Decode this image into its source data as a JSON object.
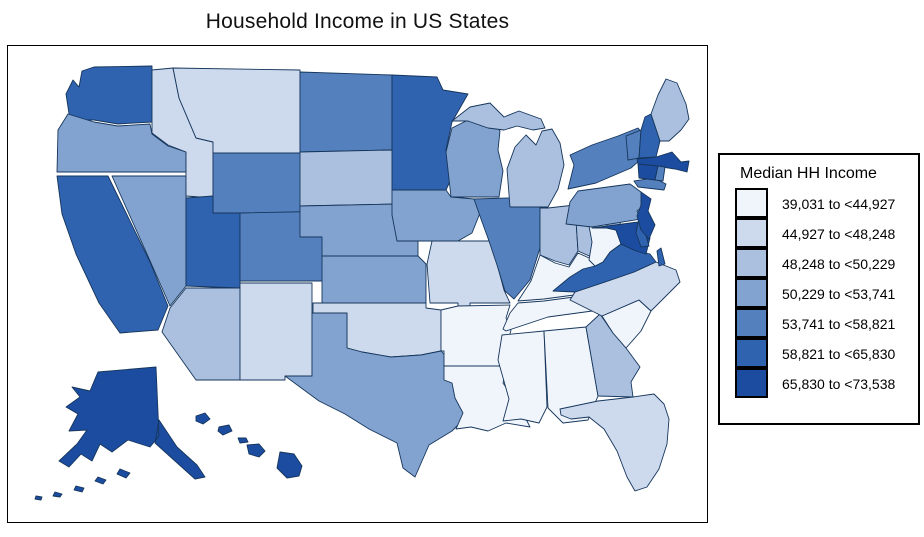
{
  "title": "Household Income in US States",
  "legend": {
    "title": "Median HH Income"
  },
  "map": {
    "background": "#FFFFFF",
    "panel_border_color": "#000000",
    "state_outline_color": "#16365C"
  },
  "chart_data": {
    "type": "choropleth_map",
    "region": "United States (50 states)",
    "title": "Household Income in US States",
    "legend_title": "Median HH Income",
    "unit": "USD, median household income",
    "legend_position": "right",
    "bins": [
      {
        "label": "39,031 to <44,927",
        "min": 39031,
        "max": 44927,
        "color": "#F0F4FB",
        "states": [
          "AL",
          "AR",
          "KY",
          "LA",
          "MS",
          "SC",
          "TN",
          "WV"
        ]
      },
      {
        "label": "44,927 to <48,248",
        "min": 44927,
        "max": 48248,
        "color": "#CDD9EC",
        "states": [
          "FL",
          "ID",
          "MO",
          "MT",
          "NM",
          "NC",
          "OK"
        ]
      },
      {
        "label": "48,248 to <50,229",
        "min": 48248,
        "max": 50229,
        "color": "#ABC0DF",
        "states": [
          "AZ",
          "GA",
          "IN",
          "ME",
          "MI",
          "OH",
          "SD"
        ]
      },
      {
        "label": "50,229 to <53,741",
        "min": 50229,
        "max": 53741,
        "color": "#82A3CF",
        "states": [
          "IA",
          "KS",
          "NE",
          "NV",
          "OR",
          "PA",
          "TX",
          "WI"
        ]
      },
      {
        "label": "53,741 to <58,821",
        "min": 53741,
        "max": 58821,
        "color": "#5580BE",
        "states": [
          "CO",
          "IL",
          "ND",
          "NY",
          "RI",
          "VT",
          "WY"
        ]
      },
      {
        "label": "58,821 to <65,830",
        "min": 58821,
        "max": 65830,
        "color": "#2F62AF",
        "states": [
          "CA",
          "DE",
          "MN",
          "NH",
          "UT",
          "VA",
          "WA"
        ]
      },
      {
        "label": "65,830 to <73,538",
        "min": 65830,
        "max": 73538,
        "color": "#1B4CA0",
        "states": [
          "AK",
          "CT",
          "HI",
          "MA",
          "MD",
          "NJ"
        ]
      }
    ]
  }
}
